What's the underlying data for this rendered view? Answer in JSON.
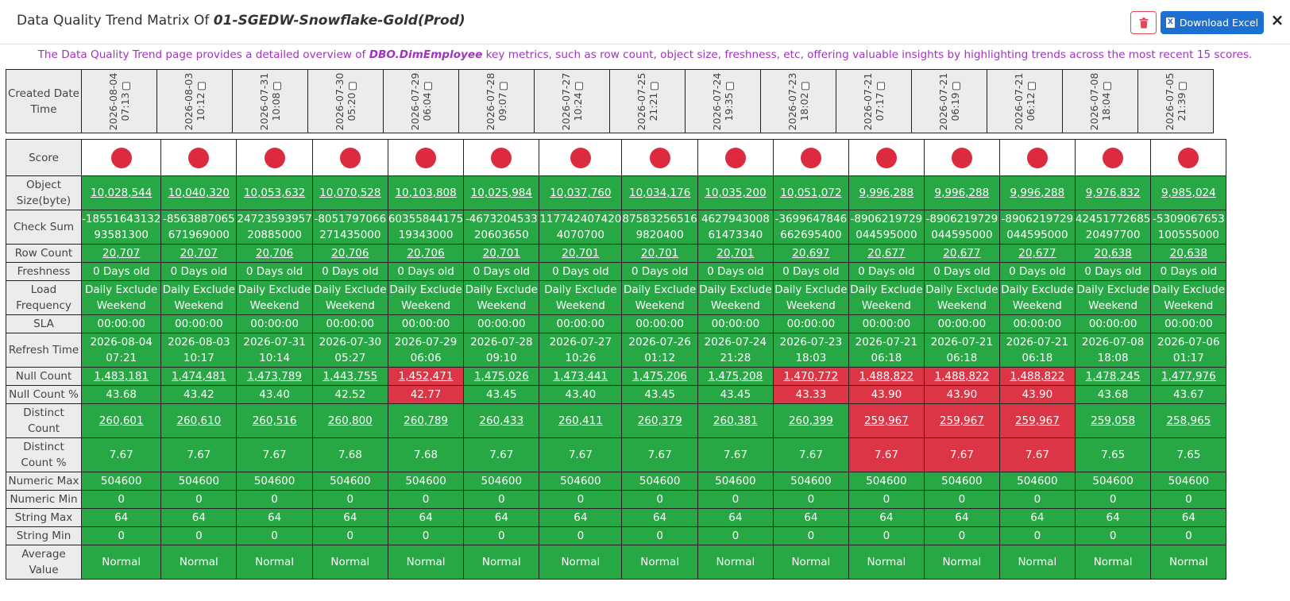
{
  "header": {
    "title_prefix": "Data Quality Trend Matrix Of",
    "title_entity": "01-SGEDW-Snowflake-Gold(Prod)",
    "download_label": "Download Excel",
    "download_icon": "excel-icon",
    "delete_icon": "trash-icon",
    "close_label": "×"
  },
  "description": {
    "prefix": "The Data Quality Trend page provides a detailed overview of",
    "entity": "DBO.DimEmployee",
    "suffix": "key metrics, such as row count, object size, freshness, etc, offering valuable insights by highlighting trends across the most recent 15 scores."
  },
  "colors": {
    "good": "#28a745",
    "bad": "#dc3545",
    "score_dot": "#dc2a3f",
    "accent": "#1d6fd1",
    "description": "#a232c0"
  },
  "matrix": {
    "date_label": "Created Date Time",
    "columns": [
      {
        "date": "2026-08-04",
        "time": "07:13"
      },
      {
        "date": "2026-08-03",
        "time": "10:12"
      },
      {
        "date": "2026-07-31",
        "time": "10:08"
      },
      {
        "date": "2026-07-30",
        "time": "05:20"
      },
      {
        "date": "2026-07-29",
        "time": "06:04"
      },
      {
        "date": "2026-07-28",
        "time": "09:07"
      },
      {
        "date": "2026-07-27",
        "time": "10:24"
      },
      {
        "date": "2026-07-25",
        "time": "21:21"
      },
      {
        "date": "2026-07-24",
        "time": "19:35"
      },
      {
        "date": "2026-07-23",
        "time": "18:02"
      },
      {
        "date": "2026-07-21",
        "time": "07:17"
      },
      {
        "date": "2026-07-21",
        "time": "06:19"
      },
      {
        "date": "2026-07-21",
        "time": "06:12"
      },
      {
        "date": "2026-07-08",
        "time": "18:04"
      },
      {
        "date": "2026-07-05",
        "time": "21:39"
      }
    ],
    "score_label": "Score",
    "rows": [
      {
        "label": [
          "Object",
          "Size(byte)"
        ],
        "link": true,
        "values": [
          "10,028,544",
          "10,040,320",
          "10,053,632",
          "10,070,528",
          "10,103,808",
          "10,025,984",
          "10,037,760",
          "10,034,176",
          "10,035,200",
          "10,051,072",
          "9,996,288",
          "9,996,288",
          "9,996,288",
          "9,976,832",
          "9,985,024"
        ],
        "bad": []
      },
      {
        "label": [
          "Check Sum"
        ],
        "link": false,
        "values": [
          [
            "-18551643132",
            "93581300"
          ],
          [
            "-8563887065",
            "671969000"
          ],
          [
            "24723593957",
            "20885000"
          ],
          [
            "-8051797066",
            "271435000"
          ],
          [
            "60355844175",
            "19343000"
          ],
          [
            "-4673204533",
            "20603650"
          ],
          [
            "117742407420",
            "4070700"
          ],
          [
            "87583256516",
            "9820400"
          ],
          [
            "4627943008",
            "61473340"
          ],
          [
            "-3699647846",
            "662695400"
          ],
          [
            "-8906219729",
            "044595000"
          ],
          [
            "-8906219729",
            "044595000"
          ],
          [
            "-8906219729",
            "044595000"
          ],
          [
            "42451772685",
            "20497700"
          ],
          [
            "-5309067653",
            "100555000"
          ]
        ],
        "bad": []
      },
      {
        "label": [
          "Row Count"
        ],
        "link": true,
        "values": [
          "20,707",
          "20,707",
          "20,706",
          "20,706",
          "20,706",
          "20,701",
          "20,701",
          "20,701",
          "20,701",
          "20,697",
          "20,677",
          "20,677",
          "20,677",
          "20,638",
          "20,638"
        ],
        "bad": []
      },
      {
        "label": [
          "Freshness"
        ],
        "link": false,
        "values": [
          "0 Days old",
          "0 Days old",
          "0 Days old",
          "0 Days old",
          "0 Days old",
          "0 Days old",
          "0 Days old",
          "0 Days old",
          "0 Days old",
          "0 Days old",
          "0 Days old",
          "0 Days old",
          "0 Days old",
          "0 Days old",
          "0 Days old"
        ],
        "bad": []
      },
      {
        "label": [
          "Load",
          "Frequency"
        ],
        "link": false,
        "values": [
          [
            "Daily Exclude",
            "Weekend"
          ],
          [
            "Daily Exclude",
            "Weekend"
          ],
          [
            "Daily Exclude",
            "Weekend"
          ],
          [
            "Daily Exclude",
            "Weekend"
          ],
          [
            "Daily Exclude",
            "Weekend"
          ],
          [
            "Daily Exclude",
            "Weekend"
          ],
          [
            "Daily Exclude",
            "Weekend"
          ],
          [
            "Daily Exclude",
            "Weekend"
          ],
          [
            "Daily Exclude",
            "Weekend"
          ],
          [
            "Daily Exclude",
            "Weekend"
          ],
          [
            "Daily Exclude",
            "Weekend"
          ],
          [
            "Daily Exclude",
            "Weekend"
          ],
          [
            "Daily Exclude",
            "Weekend"
          ],
          [
            "Daily Exclude",
            "Weekend"
          ],
          [
            "Daily Exclude",
            "Weekend"
          ]
        ],
        "bad": []
      },
      {
        "label": [
          "SLA"
        ],
        "link": false,
        "values": [
          "00:00:00",
          "00:00:00",
          "00:00:00",
          "00:00:00",
          "00:00:00",
          "00:00:00",
          "00:00:00",
          "00:00:00",
          "00:00:00",
          "00:00:00",
          "00:00:00",
          "00:00:00",
          "00:00:00",
          "00:00:00",
          "00:00:00"
        ],
        "bad": []
      },
      {
        "label": [
          "Refresh Time"
        ],
        "link": false,
        "values": [
          [
            "2026-08-04",
            "07:21"
          ],
          [
            "2026-08-03",
            "10:17"
          ],
          [
            "2026-07-31",
            "10:14"
          ],
          [
            "2026-07-30",
            "05:27"
          ],
          [
            "2026-07-29",
            "06:06"
          ],
          [
            "2026-07-28",
            "09:10"
          ],
          [
            "2026-07-27",
            "10:26"
          ],
          [
            "2026-07-26",
            "01:12"
          ],
          [
            "2026-07-24",
            "21:28"
          ],
          [
            "2026-07-23",
            "18:03"
          ],
          [
            "2026-07-21",
            "06:18"
          ],
          [
            "2026-07-21",
            "06:18"
          ],
          [
            "2026-07-21",
            "06:18"
          ],
          [
            "2026-07-08",
            "18:08"
          ],
          [
            "2026-07-06",
            "01:17"
          ]
        ],
        "bad": []
      },
      {
        "label": [
          "Null Count"
        ],
        "link": true,
        "values": [
          "1,483,181",
          "1,474,481",
          "1,473,789",
          "1,443,755",
          "1,452,471",
          "1,475,026",
          "1,473,441",
          "1,475,206",
          "1,475,208",
          "1,470,772",
          "1,488,822",
          "1,488,822",
          "1,488,822",
          "1,478,245",
          "1,477,976"
        ],
        "bad": [
          4,
          9,
          10,
          11,
          12
        ]
      },
      {
        "label": [
          "Null Count %"
        ],
        "link": false,
        "values": [
          "43.68",
          "43.42",
          "43.40",
          "42.52",
          "42.77",
          "43.45",
          "43.40",
          "43.45",
          "43.45",
          "43.33",
          "43.90",
          "43.90",
          "43.90",
          "43.68",
          "43.67"
        ],
        "bad": [
          4,
          9,
          10,
          11,
          12
        ]
      },
      {
        "label": [
          "Distinct",
          "Count"
        ],
        "link": true,
        "values": [
          "260,601",
          "260,610",
          "260,516",
          "260,800",
          "260,789",
          "260,433",
          "260,411",
          "260,379",
          "260,381",
          "260,399",
          "259,967",
          "259,967",
          "259,967",
          "259,058",
          "258,965"
        ],
        "bad": [
          10,
          11,
          12
        ]
      },
      {
        "label": [
          "Distinct",
          "Count %"
        ],
        "link": false,
        "values": [
          "7.67",
          "7.67",
          "7.67",
          "7.68",
          "7.68",
          "7.67",
          "7.67",
          "7.67",
          "7.67",
          "7.67",
          "7.67",
          "7.67",
          "7.67",
          "7.65",
          "7.65"
        ],
        "bad": [
          10,
          11,
          12
        ]
      },
      {
        "label": [
          "Numeric Max"
        ],
        "link": false,
        "values": [
          "504600",
          "504600",
          "504600",
          "504600",
          "504600",
          "504600",
          "504600",
          "504600",
          "504600",
          "504600",
          "504600",
          "504600",
          "504600",
          "504600",
          "504600"
        ],
        "bad": []
      },
      {
        "label": [
          "Numeric Min"
        ],
        "link": false,
        "values": [
          "0",
          "0",
          "0",
          "0",
          "0",
          "0",
          "0",
          "0",
          "0",
          "0",
          "0",
          "0",
          "0",
          "0",
          "0"
        ],
        "bad": []
      },
      {
        "label": [
          "String Max"
        ],
        "link": false,
        "values": [
          "64",
          "64",
          "64",
          "64",
          "64",
          "64",
          "64",
          "64",
          "64",
          "64",
          "64",
          "64",
          "64",
          "64",
          "64"
        ],
        "bad": []
      },
      {
        "label": [
          "String Min"
        ],
        "link": false,
        "values": [
          "0",
          "0",
          "0",
          "0",
          "0",
          "0",
          "0",
          "0",
          "0",
          "0",
          "0",
          "0",
          "0",
          "0",
          "0"
        ],
        "bad": []
      },
      {
        "label": [
          "Average",
          "Value"
        ],
        "link": false,
        "values": [
          "Normal",
          "Normal",
          "Normal",
          "Normal",
          "Normal",
          "Normal",
          "Normal",
          "Normal",
          "Normal",
          "Normal",
          "Normal",
          "Normal",
          "Normal",
          "Normal",
          "Normal"
        ],
        "bad": []
      }
    ]
  }
}
